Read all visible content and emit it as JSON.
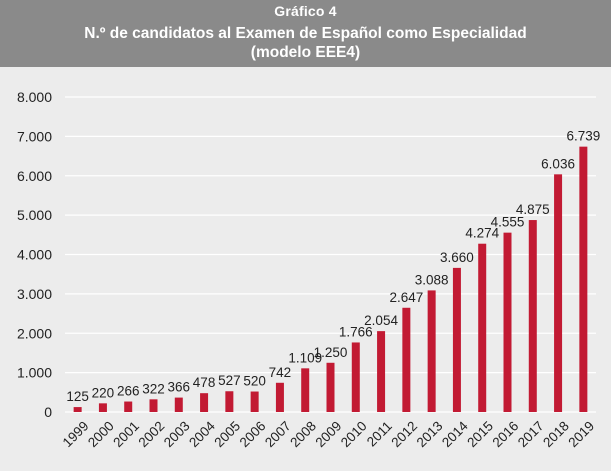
{
  "figure": {
    "label": "Gráfico 4",
    "title_line1": "N.º de candidatos al Examen de Español como Especialidad",
    "title_line2": "(modelo EEE4)"
  },
  "colors": {
    "bar": "#c21a33",
    "header_bg": "#8a8a8a",
    "plot_bg": "#ececec",
    "grid": "#ffffff"
  },
  "chart_data": {
    "type": "bar",
    "title": "N.º de candidatos al Examen de Español como Especialidad (modelo EEE4)",
    "categories": [
      "1999",
      "2000",
      "2001",
      "2002",
      "2003",
      "2004",
      "2005",
      "2006",
      "2007",
      "2008",
      "2009",
      "2010",
      "2011",
      "2012",
      "2013",
      "2014",
      "2015",
      "2016",
      "2017",
      "2018",
      "2019"
    ],
    "values": [
      125,
      220,
      266,
      322,
      366,
      478,
      527,
      520,
      742,
      1109,
      1250,
      1766,
      2054,
      2647,
      3088,
      3660,
      4274,
      4555,
      4875,
      6036,
      6739
    ],
    "value_labels": [
      "125",
      "220",
      "266",
      "322",
      "366",
      "478",
      "527",
      "520",
      "742",
      "1.109",
      "1.250",
      "1.766",
      "2.054",
      "2.647",
      "3.088",
      "3.660",
      "4.274",
      "4.555",
      "4.875",
      "6.036",
      "6.739"
    ],
    "y_ticks": [
      0,
      1000,
      2000,
      3000,
      4000,
      5000,
      6000,
      7000,
      8000
    ],
    "y_tick_labels": [
      "0",
      "1.000",
      "2.000",
      "3.000",
      "4.000",
      "5.000",
      "6.000",
      "7.000",
      "8.000"
    ],
    "ylim": [
      0,
      8000
    ],
    "xlabel": "",
    "ylabel": "",
    "grid": true
  }
}
